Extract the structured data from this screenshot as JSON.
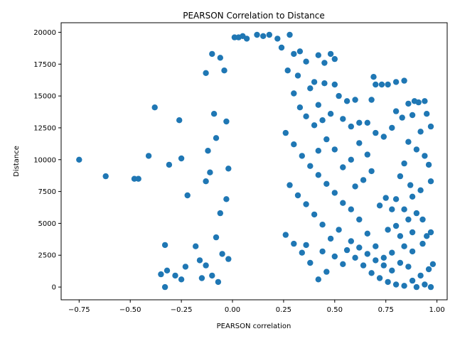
{
  "chart_data": {
    "type": "scatter",
    "title": "PEARSON Correlation to Distance",
    "xlabel": "PEARSON correlation",
    "ylabel": "Distance",
    "xlim": [
      -0.838,
      1.05
    ],
    "ylim": [
      -1000,
      20750
    ],
    "xticks": [
      -0.75,
      -0.5,
      -0.25,
      0.0,
      0.25,
      0.5,
      0.75,
      1.0
    ],
    "xtick_labels": [
      "−0.75",
      "−0.50",
      "−0.25",
      "0.00",
      "0.25",
      "0.50",
      "0.75",
      "1.00"
    ],
    "yticks": [
      0,
      2500,
      5000,
      7500,
      10000,
      12500,
      15000,
      17500,
      20000
    ],
    "ytick_labels": [
      "0",
      "2500",
      "5000",
      "7500",
      "10000",
      "12500",
      "15000",
      "17500",
      "20000"
    ],
    "grid": false,
    "marker_color": "#1f77b4",
    "points": [
      [
        -0.75,
        10000
      ],
      [
        -0.62,
        8700
      ],
      [
        -0.48,
        8500
      ],
      [
        -0.46,
        8500
      ],
      [
        -0.41,
        10300
      ],
      [
        -0.38,
        14100
      ],
      [
        -0.31,
        9600
      ],
      [
        -0.26,
        13100
      ],
      [
        -0.25,
        10100
      ],
      [
        -0.22,
        7200
      ],
      [
        -0.33,
        3300
      ],
      [
        -0.35,
        1000
      ],
      [
        -0.32,
        1300
      ],
      [
        -0.33,
        0
      ],
      [
        -0.28,
        900
      ],
      [
        -0.25,
        600
      ],
      [
        -0.23,
        1600
      ],
      [
        -0.18,
        3200
      ],
      [
        -0.16,
        2100
      ],
      [
        -0.15,
        700
      ],
      [
        -0.13,
        1700
      ],
      [
        -0.13,
        8300
      ],
      [
        -0.12,
        10700
      ],
      [
        -0.11,
        9000
      ],
      [
        -0.13,
        16800
      ],
      [
        -0.1,
        18300
      ],
      [
        -0.09,
        13600
      ],
      [
        -0.08,
        11700
      ],
      [
        -0.06,
        18000
      ],
      [
        -0.04,
        17000
      ],
      [
        -0.03,
        13000
      ],
      [
        -0.06,
        5800
      ],
      [
        -0.08,
        3900
      ],
      [
        -0.05,
        2600
      ],
      [
        -0.02,
        2200
      ],
      [
        -0.1,
        900
      ],
      [
        -0.07,
        400
      ],
      [
        -0.03,
        6900
      ],
      [
        -0.02,
        9300
      ],
      [
        0.01,
        19600
      ],
      [
        0.03,
        19600
      ],
      [
        0.05,
        19700
      ],
      [
        0.07,
        19500
      ],
      [
        0.12,
        19800
      ],
      [
        0.15,
        19700
      ],
      [
        0.18,
        19800
      ],
      [
        0.22,
        19500
      ],
      [
        0.28,
        19800
      ],
      [
        0.24,
        18800
      ],
      [
        0.3,
        18300
      ],
      [
        0.33,
        18500
      ],
      [
        0.42,
        18200
      ],
      [
        0.48,
        18300
      ],
      [
        0.5,
        17900
      ],
      [
        0.45,
        17600
      ],
      [
        0.36,
        17700
      ],
      [
        0.27,
        17000
      ],
      [
        0.32,
        16600
      ],
      [
        0.4,
        16100
      ],
      [
        0.45,
        16000
      ],
      [
        0.5,
        15900
      ],
      [
        0.52,
        15000
      ],
      [
        0.56,
        14600
      ],
      [
        0.6,
        14700
      ],
      [
        0.68,
        14700
      ],
      [
        0.69,
        16500
      ],
      [
        0.7,
        15900
      ],
      [
        0.73,
        15900
      ],
      [
        0.76,
        15900
      ],
      [
        0.8,
        16100
      ],
      [
        0.84,
        16200
      ],
      [
        0.86,
        14400
      ],
      [
        0.89,
        14600
      ],
      [
        0.91,
        14500
      ],
      [
        0.94,
        14600
      ],
      [
        0.8,
        13800
      ],
      [
        0.83,
        13300
      ],
      [
        0.88,
        13500
      ],
      [
        0.95,
        13600
      ],
      [
        0.97,
        12600
      ],
      [
        0.92,
        12200
      ],
      [
        0.78,
        12500
      ],
      [
        0.74,
        11800
      ],
      [
        0.7,
        12100
      ],
      [
        0.66,
        12900
      ],
      [
        0.62,
        12900
      ],
      [
        0.58,
        12600
      ],
      [
        0.54,
        13200
      ],
      [
        0.48,
        13600
      ],
      [
        0.44,
        13100
      ],
      [
        0.4,
        12700
      ],
      [
        0.36,
        13400
      ],
      [
        0.33,
        14100
      ],
      [
        0.3,
        15200
      ],
      [
        0.38,
        15600
      ],
      [
        0.42,
        14300
      ],
      [
        0.86,
        11400
      ],
      [
        0.9,
        10800
      ],
      [
        0.94,
        10300
      ],
      [
        0.96,
        9600
      ],
      [
        0.97,
        8300
      ],
      [
        0.84,
        9700
      ],
      [
        0.82,
        8700
      ],
      [
        0.87,
        8000
      ],
      [
        0.92,
        7600
      ],
      [
        0.88,
        7100
      ],
      [
        0.8,
        6900
      ],
      [
        0.75,
        7000
      ],
      [
        0.72,
        6400
      ],
      [
        0.78,
        6100
      ],
      [
        0.84,
        6100
      ],
      [
        0.9,
        5800
      ],
      [
        0.93,
        5300
      ],
      [
        0.86,
        5300
      ],
      [
        0.8,
        4800
      ],
      [
        0.76,
        4500
      ],
      [
        0.82,
        4000
      ],
      [
        0.88,
        4300
      ],
      [
        0.95,
        4000
      ],
      [
        0.97,
        4300
      ],
      [
        0.93,
        3400
      ],
      [
        0.88,
        2800
      ],
      [
        0.84,
        3200
      ],
      [
        0.78,
        2700
      ],
      [
        0.74,
        2300
      ],
      [
        0.7,
        3200
      ],
      [
        0.66,
        4200
      ],
      [
        0.62,
        5300
      ],
      [
        0.58,
        6100
      ],
      [
        0.54,
        6600
      ],
      [
        0.5,
        7400
      ],
      [
        0.46,
        8100
      ],
      [
        0.42,
        8800
      ],
      [
        0.38,
        9500
      ],
      [
        0.34,
        10300
      ],
      [
        0.3,
        11200
      ],
      [
        0.26,
        12100
      ],
      [
        0.6,
        7900
      ],
      [
        0.64,
        8400
      ],
      [
        0.68,
        9100
      ],
      [
        0.66,
        10400
      ],
      [
        0.62,
        11300
      ],
      [
        0.58,
        10000
      ],
      [
        0.54,
        9400
      ],
      [
        0.5,
        10800
      ],
      [
        0.46,
        11600
      ],
      [
        0.42,
        10700
      ],
      [
        0.52,
        4500
      ],
      [
        0.48,
        3800
      ],
      [
        0.44,
        4900
      ],
      [
        0.4,
        5700
      ],
      [
        0.36,
        6500
      ],
      [
        0.32,
        7200
      ],
      [
        0.28,
        8000
      ],
      [
        0.56,
        2900
      ],
      [
        0.6,
        2300
      ],
      [
        0.64,
        1700
      ],
      [
        0.68,
        1100
      ],
      [
        0.72,
        700
      ],
      [
        0.76,
        400
      ],
      [
        0.8,
        200
      ],
      [
        0.84,
        100
      ],
      [
        0.88,
        500
      ],
      [
        0.92,
        900
      ],
      [
        0.96,
        1400
      ],
      [
        0.98,
        1800
      ],
      [
        0.97,
        0
      ],
      [
        0.94,
        200
      ],
      [
        0.9,
        0
      ],
      [
        0.86,
        1600
      ],
      [
        0.82,
        1900
      ],
      [
        0.78,
        1300
      ],
      [
        0.74,
        1700
      ],
      [
        0.7,
        2100
      ],
      [
        0.66,
        2600
      ],
      [
        0.62,
        3100
      ],
      [
        0.58,
        3600
      ],
      [
        0.54,
        1800
      ],
      [
        0.5,
        2400
      ],
      [
        0.46,
        1200
      ],
      [
        0.42,
        600
      ],
      [
        0.38,
        1900
      ],
      [
        0.34,
        2700
      ],
      [
        0.3,
        3400
      ],
      [
        0.26,
        4100
      ],
      [
        0.36,
        3300
      ],
      [
        0.44,
        2800
      ]
    ]
  }
}
